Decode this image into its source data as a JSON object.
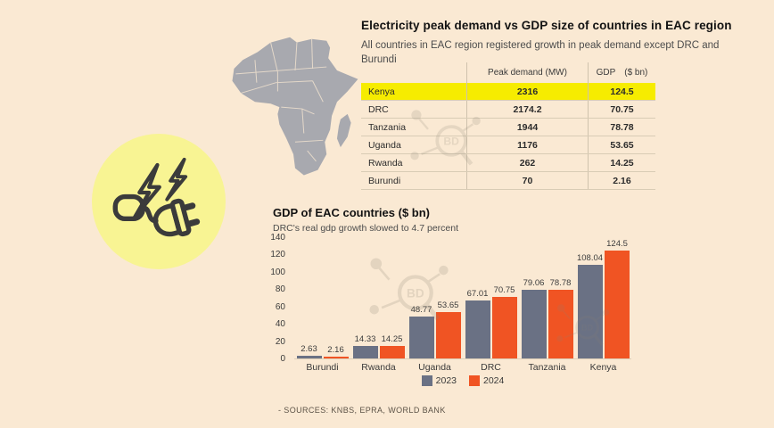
{
  "colors": {
    "background": "#fae9d3",
    "circle_yellow": "#f8f493",
    "highlight_yellow": "#f6ec00",
    "bar_2023": "#6a7184",
    "bar_2024": "#f05423",
    "map_gray": "#a8a9af"
  },
  "icons": {
    "plug": "electric-plug-lightning-icon",
    "map": "africa-map",
    "watermark": "bd-logo-watermark"
  },
  "header": {
    "title": "Electricity peak demand vs GDP size of countries in EAC region",
    "subtitle": "All countries in EAC region registered growth in peak demand except DRC and Burundi"
  },
  "table": {
    "columns": {
      "country": "",
      "peak": "Peak demand (MW)",
      "gdp": "GDP",
      "gdp_unit": "($ bn)"
    },
    "rows": [
      {
        "country": "Kenya",
        "peak": "2316",
        "gdp": "124.5",
        "highlighted": true
      },
      {
        "country": "DRC",
        "peak": "2174.2",
        "gdp": "70.75",
        "highlighted": false
      },
      {
        "country": "Tanzania",
        "peak": "1944",
        "gdp": "78.78",
        "highlighted": false
      },
      {
        "country": "Uganda",
        "peak": "1176",
        "gdp": "53.65",
        "highlighted": false
      },
      {
        "country": "Rwanda",
        "peak": "262",
        "gdp": "14.25",
        "highlighted": false
      },
      {
        "country": "Burundi",
        "peak": "70",
        "gdp": "2.16",
        "highlighted": false
      }
    ]
  },
  "chart_data": {
    "type": "bar",
    "title": "GDP of EAC countries ($ bn)",
    "subtitle": "DRC's real gdp growth slowed to 4.7 percent",
    "categories": [
      "Burundi",
      "Rwanda",
      "Uganda",
      "DRC",
      "Tanzania",
      "Kenya"
    ],
    "series": [
      {
        "name": "2023",
        "color": "#6a7184",
        "values": [
          2.63,
          14.33,
          48.77,
          67.01,
          79.06,
          108.04
        ]
      },
      {
        "name": "2024",
        "color": "#f05423",
        "values": [
          2.16,
          14.25,
          53.65,
          70.75,
          78.78,
          124.5
        ]
      }
    ],
    "ylim": [
      0,
      140
    ],
    "ytick_step": 20,
    "grid": false,
    "legend_position": "bottom"
  },
  "footer": {
    "source": "- SOURCES: KNBS, EPRA, WORLD BANK"
  }
}
